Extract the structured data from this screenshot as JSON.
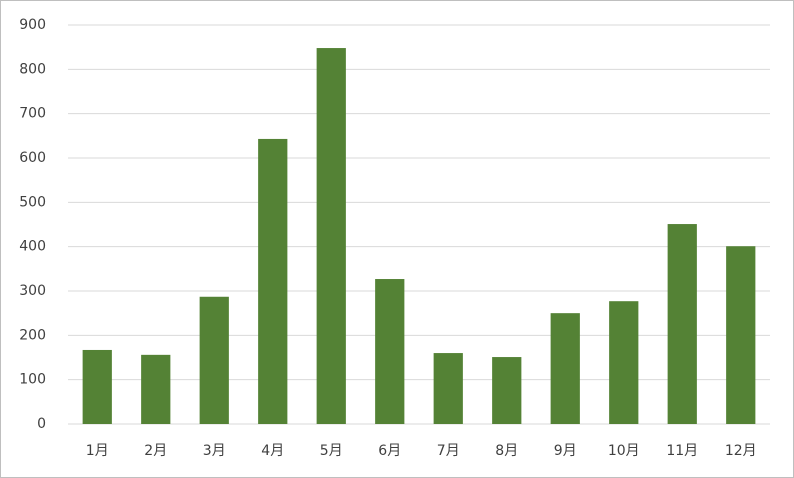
{
  "chart_data": {
    "type": "bar",
    "categories": [
      "1月",
      "2月",
      "3月",
      "4月",
      "5月",
      "6月",
      "7月",
      "8月",
      "9月",
      "10月",
      "11月",
      "12月"
    ],
    "values": [
      167,
      156,
      287,
      643,
      848,
      327,
      160,
      151,
      250,
      277,
      451,
      401
    ],
    "color": "#548235",
    "ylim": [
      0,
      900
    ],
    "yticks": [
      0,
      100,
      200,
      300,
      400,
      500,
      600,
      700,
      800,
      900
    ],
    "grid": true
  }
}
